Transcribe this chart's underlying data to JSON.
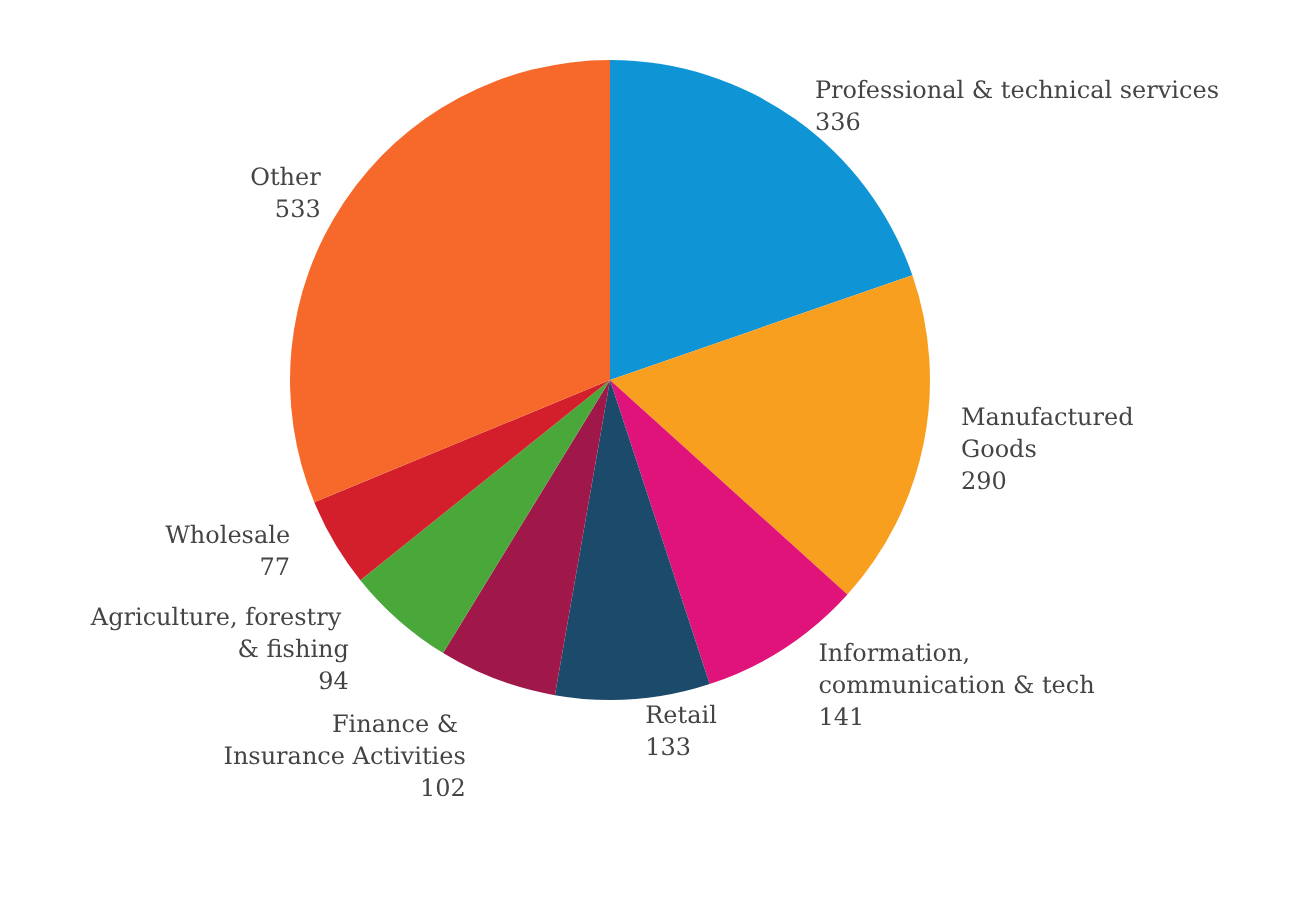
{
  "chart_data": {
    "type": "pie",
    "categories": [
      "Professional & technical services",
      "Manufactured Goods",
      "Information, communication & tech",
      "Retail",
      "Finance & Insurance Activities",
      "Agriculture, forestry & fishing",
      "Wholesale",
      "Other"
    ],
    "values": [
      336,
      290,
      141,
      133,
      102,
      94,
      77,
      533
    ],
    "colors": [
      "#0f95d6",
      "#f99f1f",
      "#e0137a",
      "#1b4a6b",
      "#a0174a",
      "#4aa83a",
      "#d21f2b",
      "#f7692a"
    ],
    "data_labels": true,
    "legend": false
  }
}
